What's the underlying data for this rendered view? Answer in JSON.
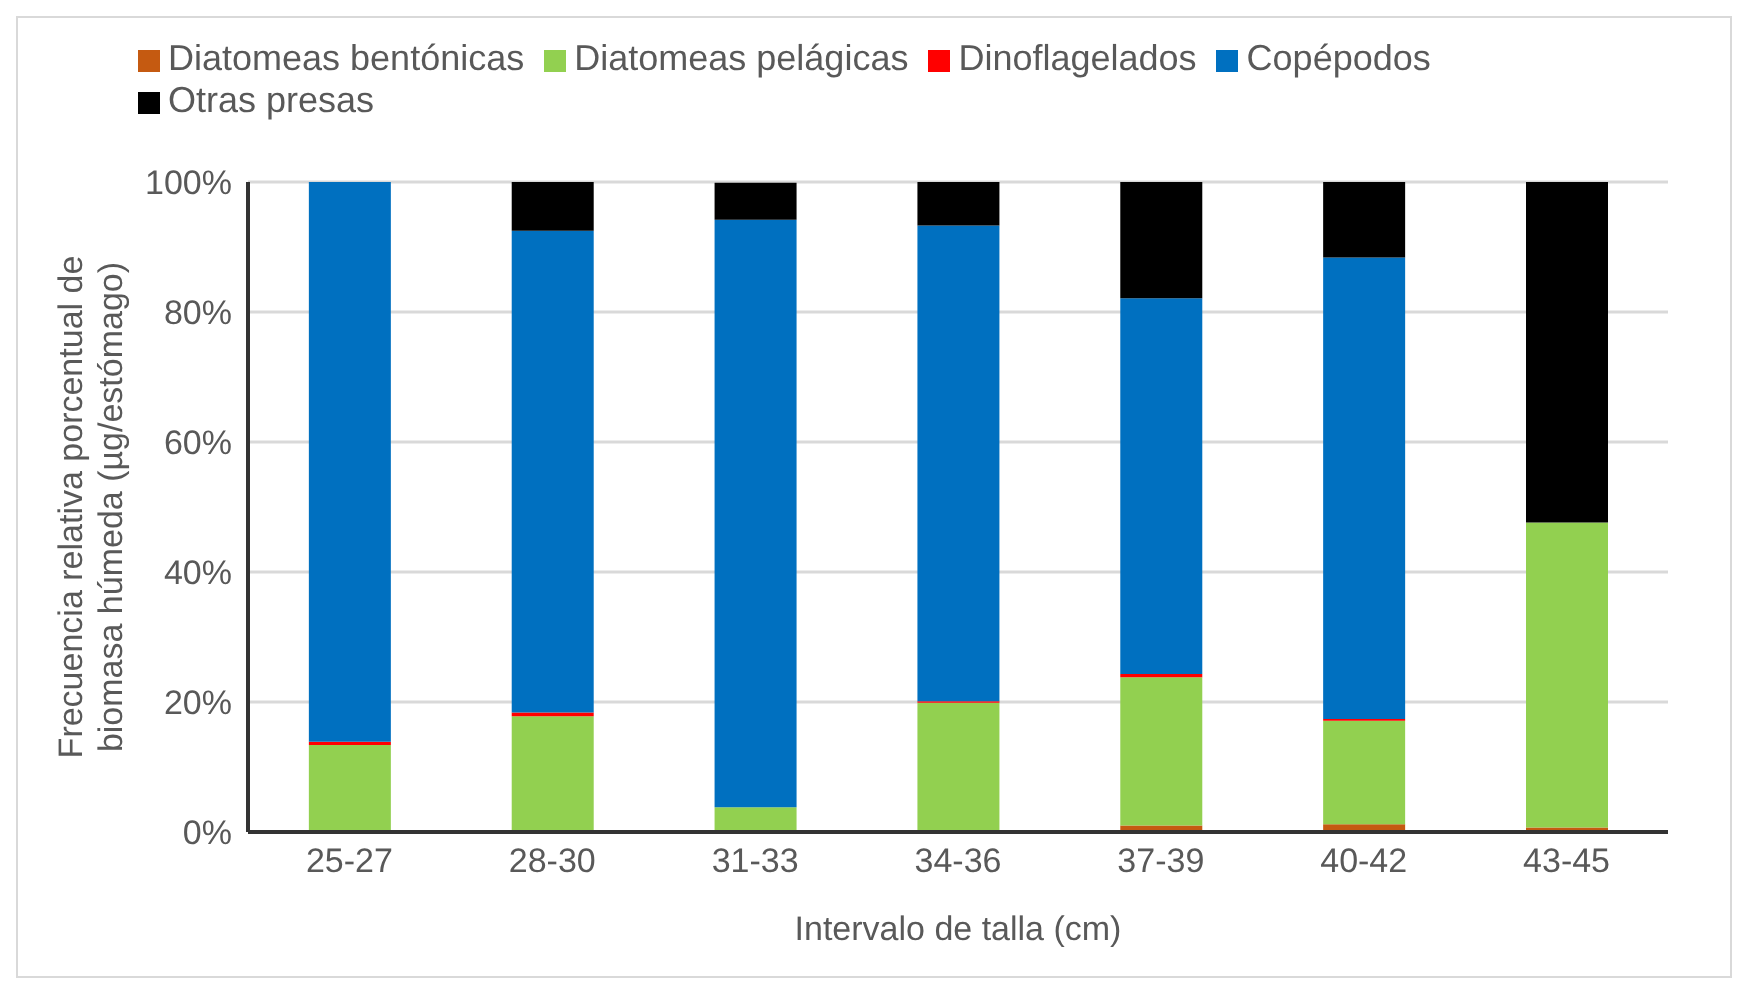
{
  "chart_data": {
    "type": "bar",
    "stacked": true,
    "xlabel": "Intervalo de talla (cm)",
    "ylabel": "Frecuencia relativa porcentual de biomasa húmeda (µg/estómago)",
    "categories": [
      "25-27",
      "28-30",
      "31-33",
      "34-36",
      "37-39",
      "40-42",
      "43-45"
    ],
    "series": [
      {
        "name": "Diatomeas bentónicas",
        "color": "#c55a11",
        "values": [
          0.2,
          0.1,
          0.1,
          0.1,
          1.0,
          1.2,
          0.7
        ]
      },
      {
        "name": "Diatomeas pelágicas",
        "color": "#92d050",
        "values": [
          13.2,
          17.7,
          3.7,
          19.8,
          22.8,
          15.9,
          46.9
        ]
      },
      {
        "name": "Dinoflagelados",
        "color": "#ff0000",
        "values": [
          0.5,
          0.6,
          null,
          0.2,
          0.5,
          0.3,
          0
        ]
      },
      {
        "name": "Copépodos",
        "color": "#0070c0",
        "values": [
          86.1,
          74.1,
          90.4,
          73.2,
          57.8,
          71.0,
          0
        ]
      },
      {
        "name": "Otras presas",
        "color": "#000000",
        "values": [
          0,
          7.5,
          5.7,
          6.7,
          17.9,
          11.6,
          52.6
        ]
      }
    ],
    "ylim": [
      0,
      100
    ],
    "yticks": [
      {
        "value": 0,
        "label": "0%"
      },
      {
        "value": 20,
        "label": "20%"
      },
      {
        "value": 40,
        "label": "40%"
      },
      {
        "value": 60,
        "label": "60%"
      },
      {
        "value": 80,
        "label": "80%"
      },
      {
        "value": 100,
        "label": "100%"
      }
    ],
    "grid": "y",
    "legend": "top"
  }
}
